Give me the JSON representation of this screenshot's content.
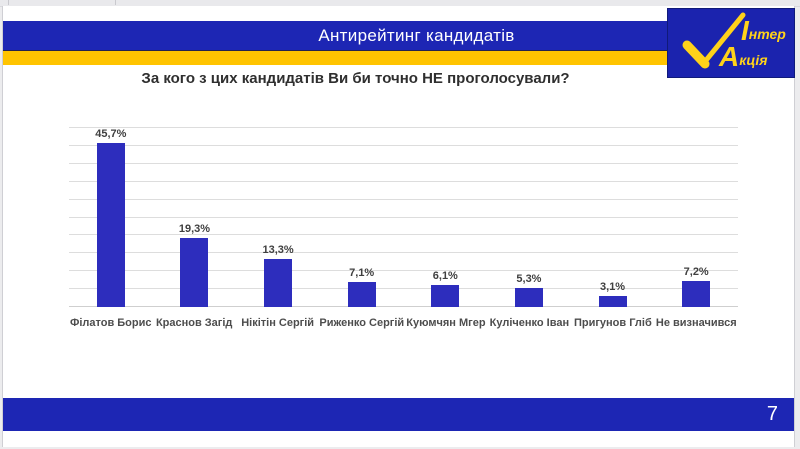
{
  "slide": {
    "banner_title": "Антирейтинг кандидатів",
    "question": "За кого з цих кандидатів Ви би точно НЕ проголосували?",
    "page_number": "7"
  },
  "logo": {
    "name": "Інтер Акція",
    "initial1": "І",
    "rest1": "нтер",
    "initial2": "А",
    "rest2": "кція",
    "icon": "check-icon",
    "bg_color": "#1b23ae",
    "text_color": "#ffd21a"
  },
  "colors": {
    "banner_blue": "#1d26b4",
    "stripe_yellow": "#ffc400",
    "bar_blue": "#2d2dbd",
    "gridline": "#dddddd",
    "value_label_text": "#3f3f3f",
    "category_label_text": "#4d4d4d"
  },
  "chart_data": {
    "type": "bar",
    "title": "За кого з цих кандидатів Ви би точно НЕ проголосували?",
    "categories": [
      "Філатов Борис",
      "Краснов Загід",
      "Нікітін Сергій",
      "Риженко Сергій",
      "Куюмчян Мгер",
      "Куліченко Іван",
      "Пригунов Гліб",
      "Не визначився"
    ],
    "values": [
      45.7,
      19.3,
      13.3,
      7.1,
      6.1,
      5.3,
      3.1,
      7.2
    ],
    "value_labels": [
      "45,7%",
      "19,3%",
      "13,3%",
      "7,1%",
      "6,1%",
      "5,3%",
      "3,1%",
      "7,2%"
    ],
    "xlabel": "",
    "ylabel": "",
    "ylim": [
      0,
      50
    ],
    "grid": true,
    "gridline_step": 5,
    "legend": false,
    "bar_color": "#2d2dbd"
  }
}
